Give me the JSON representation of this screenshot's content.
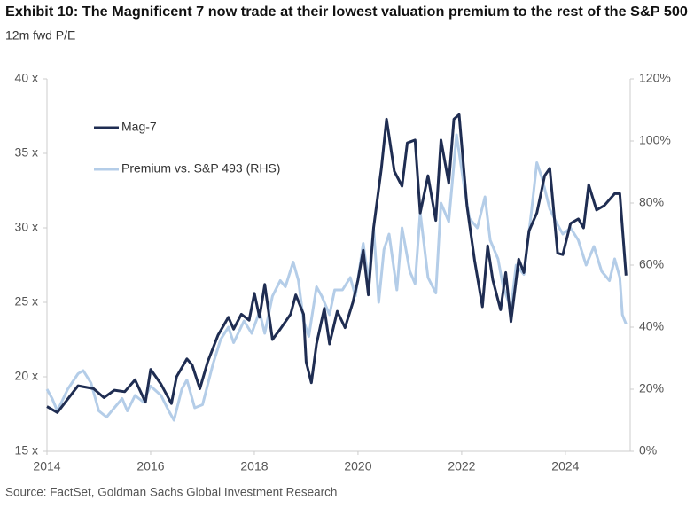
{
  "chart_data": {
    "type": "line",
    "title": "Exhibit 10: The Magnificent 7 now trade at their lowest valuation premium to the rest of the S&P 500",
    "subtitle": "12m fwd P/E",
    "source": "Source: FactSet, Goldman Sachs Global Investment Research",
    "xlim": [
      2014,
      2025.25
    ],
    "xticks": [
      2014,
      2016,
      2018,
      2020,
      2022,
      2024
    ],
    "ylim": [
      15,
      40
    ],
    "yticks": [
      {
        "value": 15,
        "label": "15 x"
      },
      {
        "value": 20,
        "label": "20 x"
      },
      {
        "value": 25,
        "label": "25 x"
      },
      {
        "value": 30,
        "label": "30 x"
      },
      {
        "value": 35,
        "label": "35 x"
      },
      {
        "value": 40,
        "label": "40 x"
      }
    ],
    "y2lim": [
      0,
      120
    ],
    "y2ticks": [
      {
        "value": 0,
        "label": "0%"
      },
      {
        "value": 20,
        "label": "20%"
      },
      {
        "value": 40,
        "label": "40%"
      },
      {
        "value": 60,
        "label": "60%"
      },
      {
        "value": 80,
        "label": "80%"
      },
      {
        "value": 100,
        "label": "100%"
      },
      {
        "value": 120,
        "label": "120%"
      }
    ],
    "series": [
      {
        "name": "Premium vs. S&P 493 (RHS)",
        "color": "#b4cde8",
        "axis": "y2",
        "x": [
          2014.0,
          2014.1,
          2014.2,
          2014.4,
          2014.6,
          2014.7,
          2014.85,
          2015.0,
          2015.15,
          2015.3,
          2015.45,
          2015.55,
          2015.7,
          2015.85,
          2016.0,
          2016.2,
          2016.35,
          2016.45,
          2016.6,
          2016.7,
          2016.85,
          2017.0,
          2017.2,
          2017.35,
          2017.5,
          2017.6,
          2017.8,
          2017.95,
          2018.1,
          2018.2,
          2018.35,
          2018.5,
          2018.6,
          2018.75,
          2018.85,
          2018.95,
          2019.05,
          2019.2,
          2019.3,
          2019.45,
          2019.55,
          2019.7,
          2019.85,
          2019.95,
          2020.1,
          2020.2,
          2020.3,
          2020.4,
          2020.5,
          2020.6,
          2020.75,
          2020.85,
          2021.0,
          2021.1,
          2021.2,
          2021.35,
          2021.5,
          2021.6,
          2021.75,
          2021.9,
          2022.05,
          2022.15,
          2022.3,
          2022.45,
          2022.55,
          2022.7,
          2022.8,
          2022.95,
          2023.05,
          2023.2,
          2023.35,
          2023.45,
          2023.55,
          2023.7,
          2023.85,
          2023.95,
          2024.1,
          2024.25,
          2024.4,
          2024.55,
          2024.7,
          2024.85,
          2024.95,
          2025.05,
          2025.1,
          2025.17
        ],
        "values": [
          20,
          17,
          13,
          20,
          25,
          26,
          22,
          13,
          11,
          14,
          17,
          13,
          18,
          16,
          21,
          18,
          13,
          10,
          20,
          23,
          14,
          15,
          28,
          36,
          40,
          35,
          42,
          38,
          45,
          38,
          50,
          55,
          53,
          61,
          55,
          42,
          37,
          53,
          50,
          44,
          52,
          52,
          56,
          50,
          67,
          55,
          72,
          48,
          65,
          70,
          52,
          72,
          58,
          54,
          77,
          56,
          51,
          80,
          74,
          102,
          85,
          75,
          72,
          82,
          68,
          62,
          53,
          46,
          60,
          57,
          78,
          93,
          88,
          78,
          73,
          70,
          72,
          68,
          60,
          66,
          58,
          55,
          62,
          56,
          44,
          41
        ]
      },
      {
        "name": "Mag-7",
        "color": "#1f2d52",
        "x": [
          2014.0,
          2014.2,
          2014.4,
          2014.6,
          2014.9,
          2015.1,
          2015.3,
          2015.5,
          2015.7,
          2015.9,
          2016.0,
          2016.2,
          2016.4,
          2016.5,
          2016.7,
          2016.8,
          2016.95,
          2017.1,
          2017.3,
          2017.5,
          2017.6,
          2017.75,
          2017.9,
          2018.0,
          2018.1,
          2018.2,
          2018.35,
          2018.5,
          2018.7,
          2018.8,
          2018.95,
          2019.0,
          2019.1,
          2019.2,
          2019.35,
          2019.45,
          2019.6,
          2019.75,
          2019.9,
          2020.0,
          2020.1,
          2020.2,
          2020.3,
          2020.45,
          2020.55,
          2020.7,
          2020.85,
          2020.95,
          2021.1,
          2021.2,
          2021.35,
          2021.5,
          2021.6,
          2021.75,
          2021.85,
          2021.95,
          2022.1,
          2022.25,
          2022.4,
          2022.5,
          2022.6,
          2022.75,
          2022.85,
          2022.95,
          2023.1,
          2023.2,
          2023.3,
          2023.45,
          2023.6,
          2023.7,
          2023.85,
          2023.95,
          2024.1,
          2024.25,
          2024.35,
          2024.45,
          2024.6,
          2024.75,
          2024.95,
          2025.05,
          2025.17
        ],
        "values": [
          18.0,
          17.6,
          18.5,
          19.4,
          19.2,
          18.6,
          19.1,
          19.0,
          19.8,
          18.3,
          20.5,
          19.5,
          18.2,
          20.0,
          21.2,
          20.8,
          19.2,
          21.0,
          22.8,
          24.0,
          23.2,
          24.2,
          23.8,
          25.6,
          24.0,
          26.2,
          22.5,
          23.2,
          24.2,
          25.5,
          24.2,
          21.0,
          19.6,
          22.2,
          24.6,
          22.2,
          24.4,
          23.3,
          25.0,
          26.5,
          28.5,
          25.5,
          30.0,
          34.0,
          37.3,
          33.8,
          32.8,
          35.7,
          35.9,
          31.0,
          33.5,
          30.5,
          35.9,
          33.0,
          37.3,
          37.6,
          31.5,
          27.8,
          24.7,
          28.8,
          26.5,
          24.5,
          27.0,
          23.7,
          27.9,
          27.0,
          29.8,
          31.0,
          33.5,
          34.0,
          28.3,
          28.2,
          30.3,
          30.6,
          30.0,
          32.9,
          31.2,
          31.5,
          32.3,
          32.3,
          26.8
        ]
      }
    ]
  }
}
